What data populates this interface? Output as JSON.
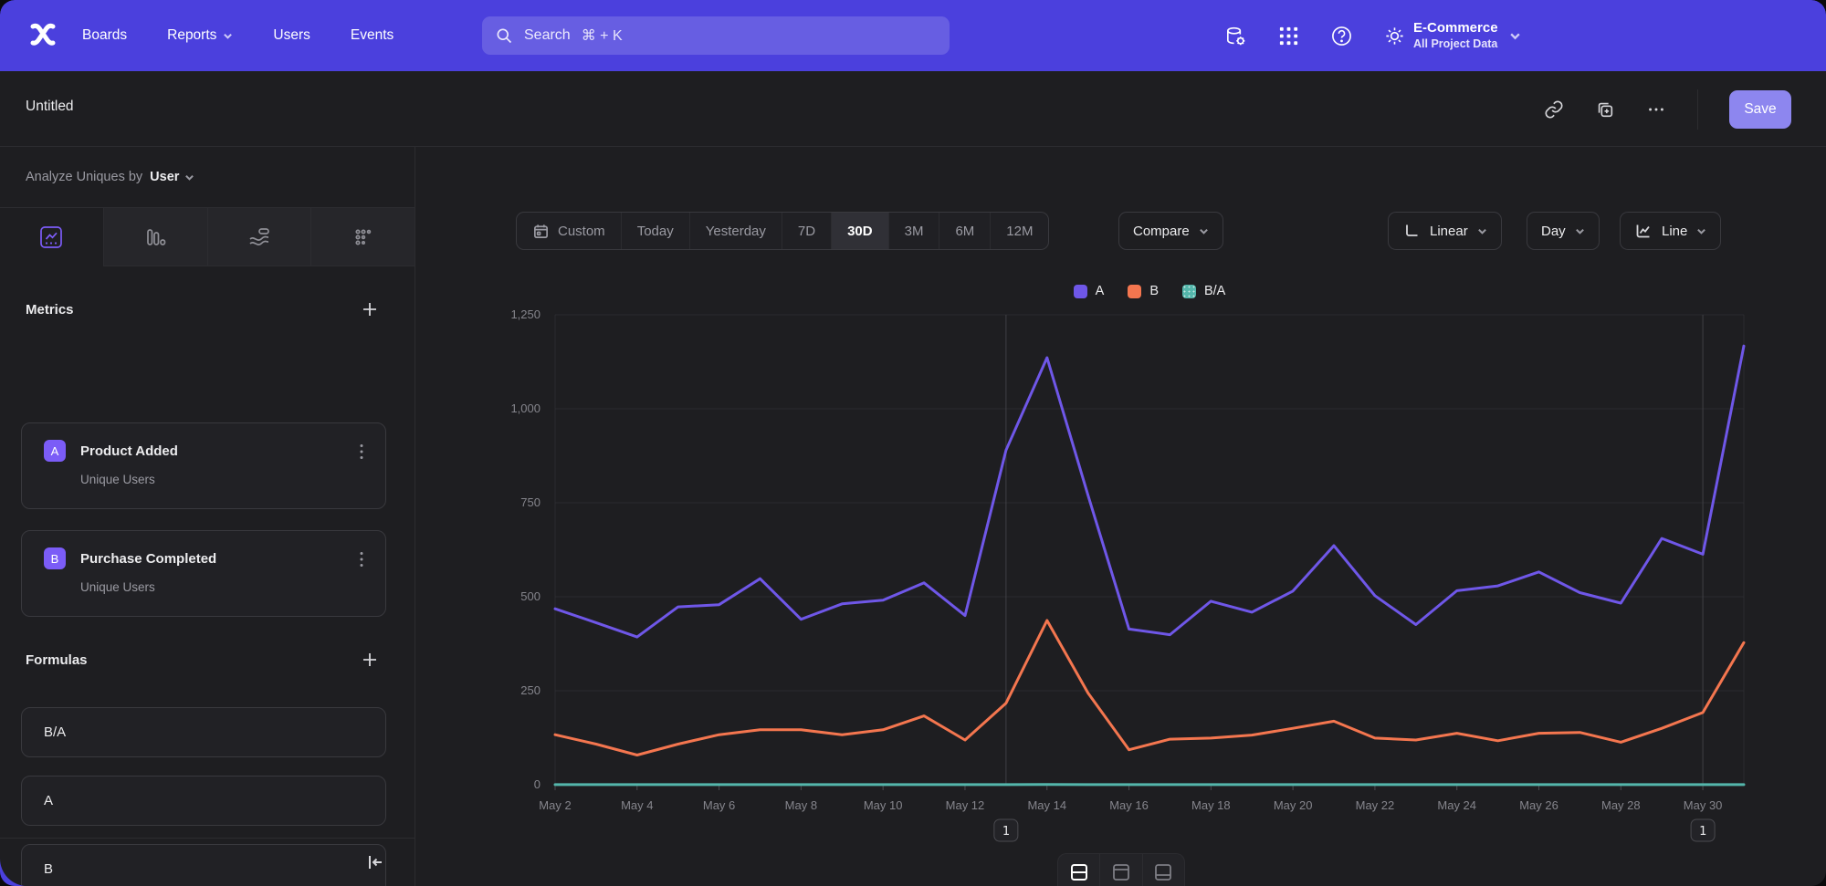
{
  "brand_color": "#4b40dd",
  "nav": {
    "items": [
      "Boards",
      "Reports",
      "Users",
      "Events"
    ],
    "search": {
      "label": "Search",
      "shortcut": "⌘ + K"
    },
    "project": {
      "name": "E-Commerce",
      "scope": "All Project Data"
    }
  },
  "header": {
    "title": "Untitled",
    "save_label": "Save"
  },
  "sidebar": {
    "analyze_prefix": "Analyze Uniques by",
    "analyze_value": "User",
    "metrics": {
      "title": "Metrics",
      "items": [
        {
          "badge": "A",
          "name": "Product Added",
          "subtitle": "Unique Users"
        },
        {
          "badge": "B",
          "name": "Purchase Completed",
          "subtitle": "Unique Users"
        }
      ]
    },
    "formulas": {
      "title": "Formulas",
      "items": [
        {
          "name": "B/A"
        },
        {
          "name": "A"
        },
        {
          "name": "B"
        }
      ]
    }
  },
  "toolbar": {
    "ranges": [
      "Custom",
      "Today",
      "Yesterday",
      "7D",
      "30D",
      "3M",
      "6M",
      "12M"
    ],
    "selected_range": "30D",
    "compare_label": "Compare",
    "scale_label": "Linear",
    "interval_label": "Day",
    "chart_type_label": "Line"
  },
  "chart_data": {
    "type": "line",
    "categories": [
      "May 2",
      "May 3",
      "May 4",
      "May 5",
      "May 6",
      "May 7",
      "May 8",
      "May 9",
      "May 10",
      "May 11",
      "May 12",
      "May 13",
      "May 14",
      "May 15",
      "May 16",
      "May 17",
      "May 18",
      "May 19",
      "May 20",
      "May 21",
      "May 22",
      "May 23",
      "May 24",
      "May 25",
      "May 26",
      "May 27",
      "May 28",
      "May 29",
      "May 30",
      "May 31"
    ],
    "x_ticks_shown": [
      "May 2",
      "May 4",
      "May 6",
      "May 8",
      "May 10",
      "May 12",
      "May 14",
      "May 16",
      "May 18",
      "May 20",
      "May 22",
      "May 24",
      "May 26",
      "May 28",
      "May 30"
    ],
    "series": [
      {
        "name": "A",
        "color": "#6f57e8",
        "values": [
          468,
          431,
          393,
          473,
          479,
          548,
          440,
          481,
          491,
          537,
          450,
          890,
          1136,
          770,
          414,
          399,
          488,
          459,
          515,
          636,
          503,
          426,
          516,
          529,
          566,
          511,
          483,
          655,
          613,
          1167
        ]
      },
      {
        "name": "B",
        "color": "#f4764f",
        "values": [
          133,
          108,
          79,
          108,
          133,
          146,
          146,
          133,
          146,
          183,
          119,
          217,
          437,
          244,
          93,
          121,
          124,
          132,
          150,
          169,
          124,
          119,
          137,
          117,
          137,
          139,
          113,
          150,
          192,
          378
        ]
      },
      {
        "name": "B/A",
        "color": "#54b6ab",
        "values": [
          0.28,
          0.25,
          0.2,
          0.23,
          0.28,
          0.27,
          0.33,
          0.28,
          0.3,
          0.34,
          0.26,
          0.24,
          0.38,
          0.32,
          0.22,
          0.3,
          0.25,
          0.29,
          0.29,
          0.27,
          0.25,
          0.28,
          0.27,
          0.22,
          0.24,
          0.27,
          0.23,
          0.23,
          0.31,
          0.32
        ]
      }
    ],
    "ylim": [
      0,
      1250
    ],
    "y_ticks": [
      {
        "value": 0,
        "label": "0"
      },
      {
        "value": 250,
        "label": "250"
      },
      {
        "value": 500,
        "label": "500"
      },
      {
        "value": 750,
        "label": "750"
      },
      {
        "value": 1000,
        "label": "1,000"
      },
      {
        "value": 1250,
        "label": "1,250"
      }
    ],
    "annotations": [
      {
        "category": "May 13",
        "label": "1"
      },
      {
        "category": "May 30",
        "label": "1"
      }
    ],
    "grid": "horizontal",
    "legend_position": "top-center"
  }
}
